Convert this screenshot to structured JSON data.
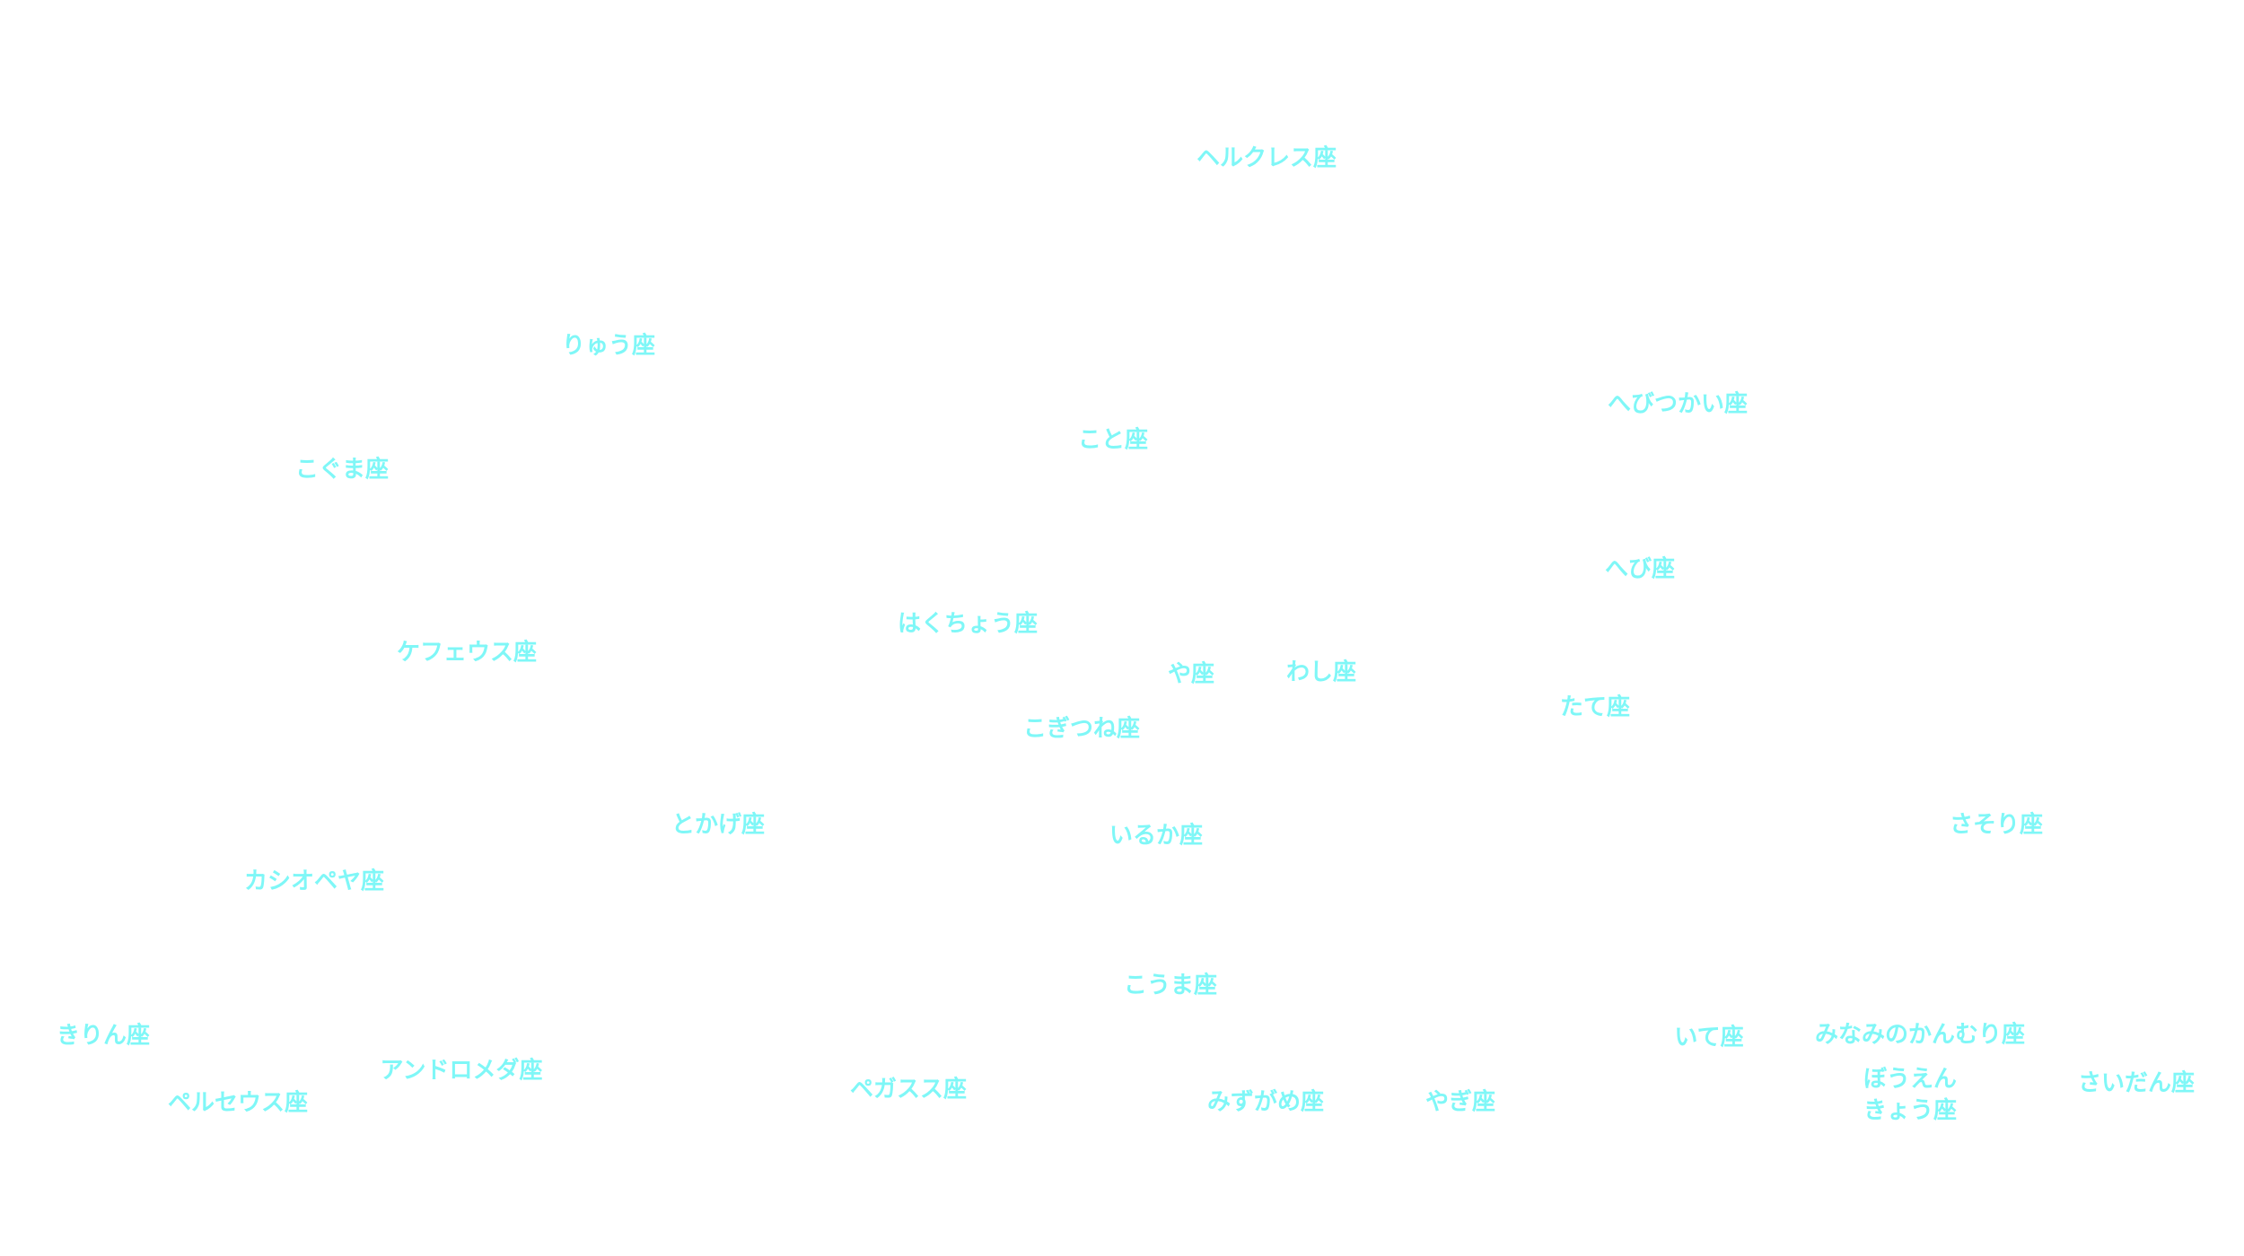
{
  "map": {
    "label_color": "#7ff7f7",
    "background": "#ffffff",
    "constellations": {
      "hercules": "ヘルクレス座",
      "draco": "りゅう座",
      "ophiuchus": "へびつかい座",
      "lyra": "こと座",
      "ursa_minor": "こぐま座",
      "serpens": "へび座",
      "cygnus": "はくちょう座",
      "cepheus": "ケフェウス座",
      "sagitta": "や座",
      "aquila": "わし座",
      "scutum": "たて座",
      "vulpecula": "こぎつね座",
      "lacerta": "とかげ座",
      "scorpius": "さそり座",
      "delphinus": "いるか座",
      "cassiopeia": "カシオペヤ座",
      "equuleus": "こうま座",
      "camelopardalis": "きりん座",
      "sagittarius": "いて座",
      "corona_australis": "みなみのかんむり座",
      "andromeda": "アンドロメダ座",
      "telescopium_line1": "ぼうえん",
      "telescopium_line2": "きょう座",
      "ara": "さいだん座",
      "pegasus": "ペガスス座",
      "perseus": "ペルセウス座",
      "aquarius": "みずがめ座",
      "capricornus": "やぎ座"
    }
  }
}
